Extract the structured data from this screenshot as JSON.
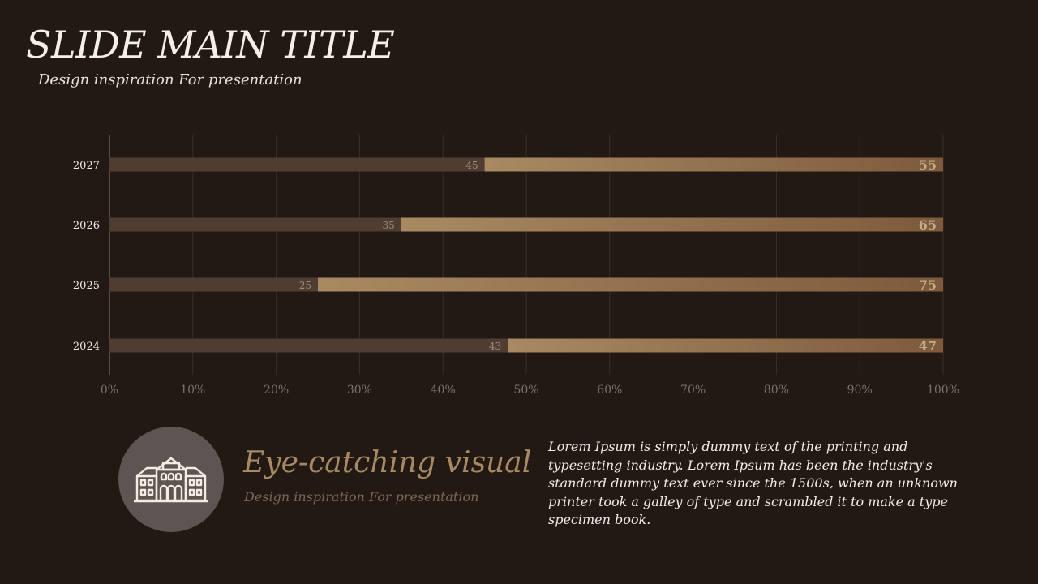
{
  "slide": {
    "title": "SLIDE MAIN TITLE",
    "subtitle": "Design inspiration For presentation"
  },
  "feature": {
    "icon": "building-icon",
    "title": "Eye-catching visual",
    "subtitle": "Design inspiration For presentation",
    "body": "Lorem Ipsum is simply dummy text of the printing and typesetting industry. Lorem Ipsum has been the industry's standard dummy text ever since the 1500s, when an unknown printer took a galley of type and scrambled it to make a type specimen book."
  },
  "colors": {
    "background": "#221915",
    "series_dark": "#4f3d31",
    "series_light_start": "#a88a62",
    "series_light_end": "#7d5a3c",
    "accent_text": "#a88a62"
  },
  "chart_data": {
    "type": "bar",
    "orientation": "horizontal",
    "stacked": "percent",
    "categories": [
      "2027",
      "2026",
      "2025",
      "2024"
    ],
    "series": [
      {
        "values": [
          45,
          35,
          25,
          43
        ]
      },
      {
        "values": [
          55,
          65,
          75,
          47
        ]
      }
    ],
    "xlim": [
      0,
      100
    ],
    "xticks": [
      "0%",
      "10%",
      "20%",
      "30%",
      "40%",
      "50%",
      "60%",
      "70%",
      "80%",
      "90%",
      "100%"
    ],
    "grid": true,
    "legend": "none"
  }
}
